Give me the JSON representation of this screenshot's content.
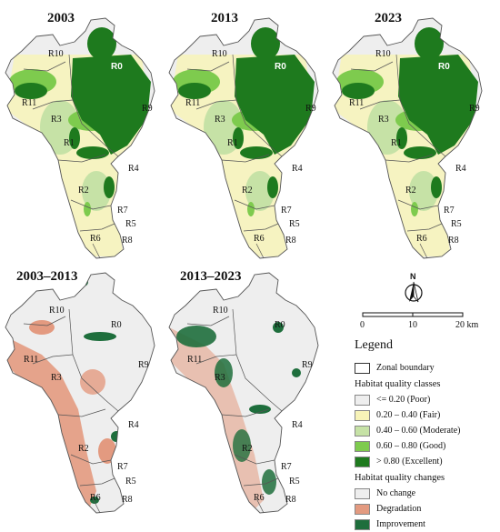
{
  "maps": [
    {
      "id": "m2003",
      "title": "2003",
      "type": "quality"
    },
    {
      "id": "m2013",
      "title": "2013",
      "type": "quality"
    },
    {
      "id": "m2023",
      "title": "2023",
      "type": "quality"
    },
    {
      "id": "c0313",
      "title": "2003–2013",
      "type": "change"
    },
    {
      "id": "c1323",
      "title": "2013–2023",
      "type": "change"
    }
  ],
  "zone_labels": [
    "R0",
    "R1",
    "R2",
    "R3",
    "R4",
    "R5",
    "R6",
    "R7",
    "R8",
    "R9",
    "R10",
    "R11"
  ],
  "north_label": "N",
  "scale": {
    "ticks": [
      "0",
      "10",
      "20 km"
    ]
  },
  "legend": {
    "title": "Legend",
    "zonal_boundary": "Zonal boundary",
    "quality_header": "Habitat quality classes",
    "quality_classes": [
      {
        "label": "<= 0.20 (Poor)",
        "color": "#eeeeee"
      },
      {
        "label": "0.20 – 0.40 (Fair)",
        "color": "#f7f3b8"
      },
      {
        "label": "0.40 – 0.60 (Moderate)",
        "color": "#c6e2a6"
      },
      {
        "label": "0.60 – 0.80 (Good)",
        "color": "#7ecb4e"
      },
      {
        "label": "> 0.80 (Excellent)",
        "color": "#1e7a1e"
      }
    ],
    "change_header": "Habitat quality changes",
    "change_classes": [
      {
        "label": "No change",
        "color": "#eeeeee"
      },
      {
        "label": "Degradation",
        "color": "#e39a80"
      },
      {
        "label": "Improvement",
        "color": "#1e6e3c"
      }
    ]
  }
}
